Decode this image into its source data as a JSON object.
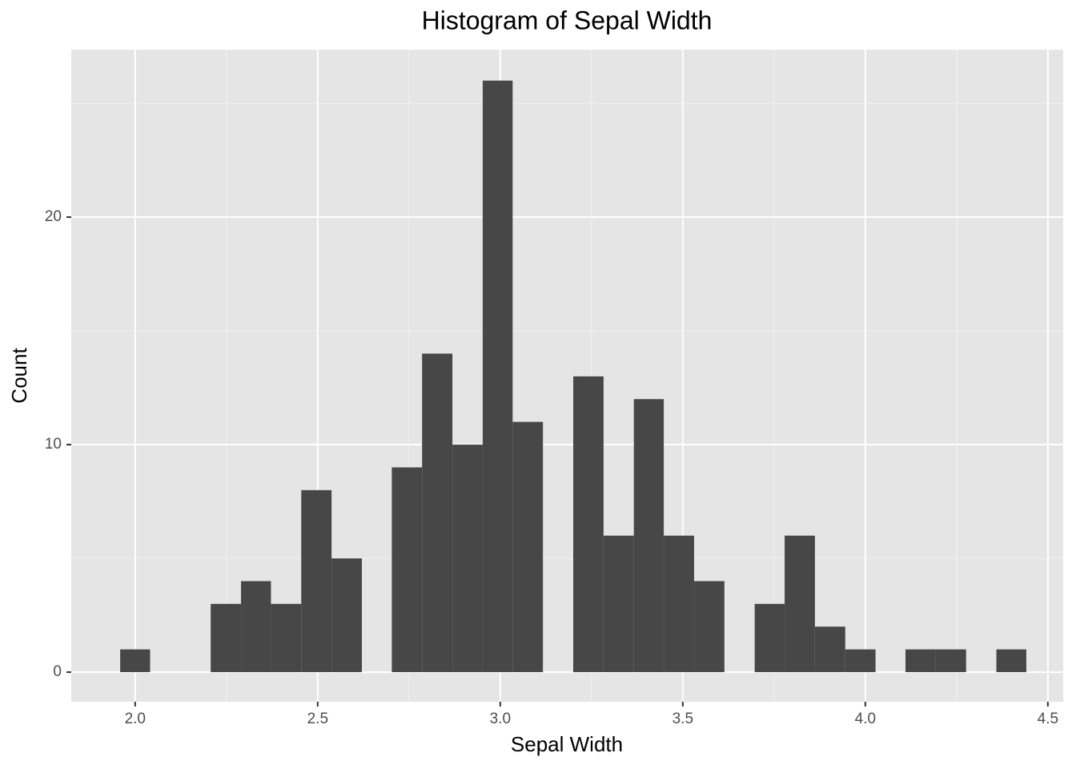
{
  "chart_data": {
    "type": "histogram",
    "title": "Histogram of Sepal Width",
    "x_label": "Sepal Width",
    "y_label": "Count",
    "bins": [
      1.959,
      2.041,
      2.124,
      2.207,
      2.29,
      2.372,
      2.455,
      2.538,
      2.621,
      2.703,
      2.786,
      2.869,
      2.952,
      3.034,
      3.117,
      3.2,
      3.283,
      3.366,
      3.448,
      3.531,
      3.614,
      3.697,
      3.779,
      3.862,
      3.945,
      4.028,
      4.11,
      4.193,
      4.276,
      4.359,
      4.441
    ],
    "values": [
      1,
      0,
      0,
      3,
      4,
      3,
      8,
      5,
      0,
      9,
      14,
      10,
      26,
      11,
      0,
      13,
      6,
      12,
      6,
      4,
      0,
      3,
      6,
      2,
      1,
      0,
      1,
      1,
      0,
      1
    ],
    "color": "#474747",
    "xlim": [
      1.825,
      4.542
    ],
    "ylim": [
      -1.3,
      27.36
    ],
    "xticks": [
      {
        "value": 2,
        "label": "2.0"
      },
      {
        "value": 2.5,
        "label": "2.5"
      },
      {
        "value": 3,
        "label": "3.0"
      },
      {
        "value": 3.5,
        "label": "3.5"
      },
      {
        "value": 4,
        "label": "4.0"
      },
      {
        "value": 4.5,
        "label": "4.5"
      }
    ],
    "yticks": [
      0,
      10,
      20
    ],
    "grid": true
  }
}
